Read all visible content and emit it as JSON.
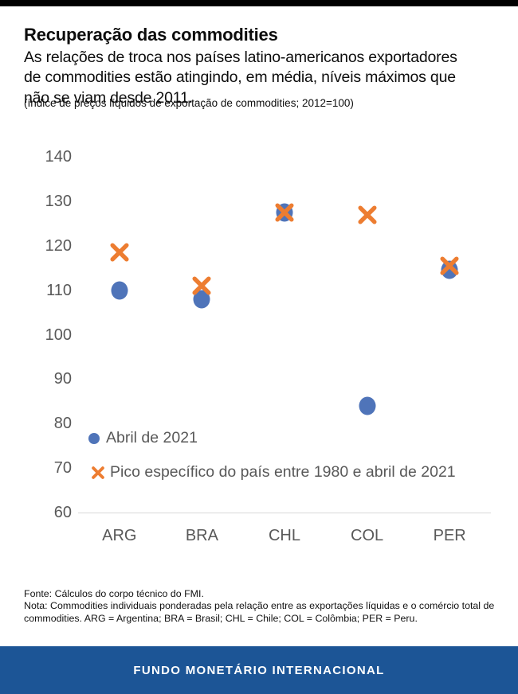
{
  "header": {
    "title": "Recuperação das commodities",
    "subtitle_lines": [
      "As relações de troca nos países latino-americanos exportadores",
      "de commodities estão atingindo, em média, níveis máximos que",
      "não se viam desde 2011."
    ],
    "spec_note": "(índice de preços líquidos de exportação de commodities; 2012=100)"
  },
  "chart_data": {
    "type": "scatter",
    "categories": [
      "ARG",
      "BRA",
      "CHL",
      "COL",
      "PER"
    ],
    "series": [
      {
        "name": "Abril de 2021",
        "marker": "circle",
        "color": "#4F74B9",
        "values": [
          110,
          108,
          127.5,
          84,
          114.5
        ]
      },
      {
        "name": "Pico específico do país entre 1980 e abril de 2021",
        "marker": "x",
        "color": "#ED7D31",
        "values": [
          118.5,
          111,
          127.5,
          127,
          115.5
        ]
      }
    ],
    "title": "Recuperação das commodities",
    "xlabel": "",
    "ylabel": "",
    "ylim": [
      60,
      140
    ],
    "ytick_step": 10,
    "grid": false,
    "legend_position": "inside-bottom-left",
    "axis_color": "#d9d9d9",
    "tick_label_color": "#595959"
  },
  "footer": {
    "fonte": "Fonte: Cálculos do corpo técnico do FMI.",
    "nota": "Nota: Commodities individuais ponderadas pela relação entre as exportações líquidas e o comércio total de commodities. ARG = Argentina; BRA = Brasil; CHL = Chile; COL = Colômbia; PER = Peru.",
    "banner": "FUNDO MONETÁRIO INTERNACIONAL",
    "banner_color": "#1C5596"
  }
}
